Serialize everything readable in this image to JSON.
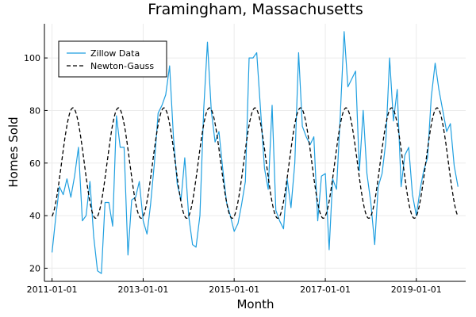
{
  "chart_data": {
    "type": "line",
    "title": "Framingham, Massachusetts",
    "xlabel": "Month",
    "ylabel": "Homes Sold",
    "xlim": [
      "2010-11-01",
      "2020-02-01"
    ],
    "ylim": [
      15,
      113
    ],
    "xticks": [
      "2011-01-01",
      "2013-01-01",
      "2015-01-01",
      "2017-01-01",
      "2019-01-01"
    ],
    "yticks": [
      20,
      40,
      60,
      80,
      100
    ],
    "grid": true,
    "legend_position": "top-left",
    "series": [
      {
        "name": "Zillow Data",
        "color": "#1f9fe0",
        "style": "solid",
        "x": [
          "2011-01-01",
          "2011-02-01",
          "2011-03-01",
          "2011-04-01",
          "2011-05-01",
          "2011-06-01",
          "2011-07-01",
          "2011-08-01",
          "2011-09-01",
          "2011-10-01",
          "2011-11-01",
          "2011-12-01",
          "2012-01-01",
          "2012-02-01",
          "2012-03-01",
          "2012-04-01",
          "2012-05-01",
          "2012-06-01",
          "2012-07-01",
          "2012-08-01",
          "2012-09-01",
          "2012-10-01",
          "2012-11-01",
          "2012-12-01",
          "2013-01-01",
          "2013-02-01",
          "2013-03-01",
          "2013-04-01",
          "2013-05-01",
          "2013-06-01",
          "2013-07-01",
          "2013-08-01",
          "2013-09-01",
          "2013-10-01",
          "2013-11-01",
          "2013-12-01",
          "2014-01-01",
          "2014-02-01",
          "2014-03-01",
          "2014-04-01",
          "2014-05-01",
          "2014-06-01",
          "2014-07-01",
          "2014-08-01",
          "2014-09-01",
          "2014-10-01",
          "2014-11-01",
          "2014-12-01",
          "2015-01-01",
          "2015-02-01",
          "2015-03-01",
          "2015-04-01",
          "2015-05-01",
          "2015-06-01",
          "2015-07-01",
          "2015-08-01",
          "2015-09-01",
          "2015-10-01",
          "2015-11-01",
          "2015-12-01",
          "2016-01-01",
          "2016-02-01",
          "2016-03-01",
          "2016-04-01",
          "2016-05-01",
          "2016-06-01",
          "2016-07-01",
          "2016-08-01",
          "2016-09-01",
          "2016-10-01",
          "2016-11-01",
          "2016-12-01",
          "2017-01-01",
          "2017-02-01",
          "2017-03-01",
          "2017-04-01",
          "2017-05-01",
          "2017-06-01",
          "2017-07-01",
          "2017-08-01",
          "2017-09-01",
          "2017-10-01",
          "2017-11-01",
          "2017-12-01",
          "2018-01-01",
          "2018-02-01",
          "2018-03-01",
          "2018-04-01",
          "2018-05-01",
          "2018-06-01",
          "2018-07-01",
          "2018-08-01",
          "2018-09-01",
          "2018-10-01",
          "2018-11-01",
          "2018-12-01",
          "2019-01-01",
          "2019-02-01",
          "2019-03-01",
          "2019-04-01",
          "2019-05-01",
          "2019-06-01",
          "2019-07-01",
          "2019-08-01",
          "2019-09-01",
          "2019-10-01",
          "2019-11-01",
          "2019-12-01"
        ],
        "y": [
          26,
          40,
          51,
          48,
          54,
          47,
          55,
          66,
          38,
          40,
          53,
          32,
          19,
          18,
          45,
          45,
          36,
          78,
          66,
          66,
          25,
          46,
          47,
          53,
          38,
          33,
          44,
          60,
          79,
          82,
          86,
          97,
          70,
          52,
          46,
          62,
          40,
          29,
          28,
          40,
          80,
          106,
          80,
          68,
          72,
          58,
          45,
          40,
          34,
          37,
          44,
          53,
          100,
          100,
          102,
          80,
          58,
          50,
          82,
          42,
          38,
          35,
          54,
          43,
          60,
          102,
          74,
          70,
          67,
          70,
          38,
          55,
          56,
          27,
          54,
          50,
          78,
          110,
          89,
          92,
          95,
          57,
          80,
          56,
          45,
          29,
          51,
          56,
          68,
          100,
          76,
          88,
          51,
          63,
          66,
          48,
          40,
          50,
          57,
          62,
          85,
          98,
          88,
          80,
          72,
          75,
          59,
          51
        ]
      },
      {
        "name": "Newton-Gauss",
        "color": "#000000",
        "style": "dashed",
        "model": "y = 60 + 21 * cos(2*pi*(month - 6.5)/12)",
        "range": [
          "2011-01-01",
          "2019-12-01"
        ]
      }
    ]
  }
}
